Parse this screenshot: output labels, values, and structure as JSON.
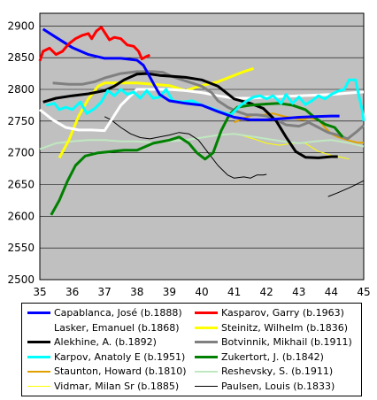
{
  "chart_data": {
    "type": "line",
    "xlim": [
      35,
      45
    ],
    "ylim": [
      2500,
      2920
    ],
    "x_ticks": [
      35,
      36,
      37,
      38,
      39,
      40,
      41,
      42,
      43,
      44,
      45
    ],
    "y_ticks": [
      2500,
      2550,
      2600,
      2650,
      2700,
      2750,
      2800,
      2850,
      2900
    ],
    "grid": true,
    "plot_background": "#c0c0c0",
    "legend_position": "bottom",
    "series": [
      {
        "name": "Capablanca, José (b.1888)",
        "color": "#0000ff",
        "width": 3,
        "points": [
          [
            35.1,
            2895
          ],
          [
            35.5,
            2882
          ],
          [
            36,
            2866
          ],
          [
            36.5,
            2855
          ],
          [
            37,
            2849
          ],
          [
            37.5,
            2849
          ],
          [
            38,
            2846
          ],
          [
            38.2,
            2838
          ],
          [
            38.5,
            2810
          ],
          [
            38.7,
            2792
          ],
          [
            39,
            2782
          ],
          [
            39.5,
            2778
          ],
          [
            40,
            2775
          ],
          [
            40.5,
            2765
          ],
          [
            41,
            2756
          ],
          [
            41.5,
            2752
          ],
          [
            42,
            2752
          ],
          [
            42.5,
            2754
          ],
          [
            43,
            2756
          ],
          [
            43.5,
            2757
          ],
          [
            44,
            2758
          ],
          [
            44.25,
            2758
          ]
        ]
      },
      {
        "name": "Kasparov, Garry (b.1963)",
        "color": "#ff0000",
        "width": 3,
        "points": [
          [
            35,
            2845
          ],
          [
            35.1,
            2860
          ],
          [
            35.3,
            2865
          ],
          [
            35.5,
            2855
          ],
          [
            35.7,
            2860
          ],
          [
            35.9,
            2872
          ],
          [
            36.1,
            2880
          ],
          [
            36.3,
            2885
          ],
          [
            36.5,
            2888
          ],
          [
            36.6,
            2880
          ],
          [
            36.75,
            2892
          ],
          [
            36.9,
            2898
          ],
          [
            37,
            2890
          ],
          [
            37.15,
            2878
          ],
          [
            37.3,
            2882
          ],
          [
            37.5,
            2880
          ],
          [
            37.7,
            2870
          ],
          [
            37.9,
            2868
          ],
          [
            38.05,
            2860
          ],
          [
            38.15,
            2848
          ],
          [
            38.3,
            2852
          ],
          [
            38.4,
            2854
          ]
        ]
      },
      {
        "name": "Lasker, Emanuel (b.1868)",
        "color": "#ffffff",
        "width": 3,
        "points": [
          [
            35,
            2768
          ],
          [
            35.4,
            2752
          ],
          [
            35.8,
            2740
          ],
          [
            36.2,
            2736
          ],
          [
            36.6,
            2736
          ],
          [
            37,
            2735
          ],
          [
            37.5,
            2775
          ],
          [
            38,
            2800
          ],
          [
            38.5,
            2800
          ],
          [
            39,
            2800
          ],
          [
            39.5,
            2798
          ],
          [
            40,
            2795
          ],
          [
            40.5,
            2790
          ],
          [
            41,
            2786
          ],
          [
            41.5,
            2786
          ],
          [
            42,
            2788
          ],
          [
            42.5,
            2789
          ],
          [
            43,
            2790
          ],
          [
            43.5,
            2791
          ],
          [
            44,
            2792
          ],
          [
            44.5,
            2794
          ],
          [
            45,
            2796
          ]
        ]
      },
      {
        "name": "Steinitz, Wilhelm (b.1836)",
        "color": "#ffff00",
        "width": 3,
        "points": [
          [
            35.6,
            2692
          ],
          [
            35.9,
            2720
          ],
          [
            36.2,
            2758
          ],
          [
            36.5,
            2785
          ],
          [
            36.8,
            2805
          ],
          [
            37,
            2810
          ],
          [
            37.5,
            2810
          ],
          [
            38,
            2810
          ],
          [
            38.5,
            2808
          ],
          [
            39,
            2806
          ],
          [
            39.5,
            2798
          ],
          [
            40,
            2806
          ],
          [
            40.5,
            2812
          ],
          [
            41,
            2822
          ],
          [
            41.3,
            2828
          ],
          [
            41.6,
            2833
          ]
        ]
      },
      {
        "name": "Alekhine, A. (b.1892)",
        "color": "#000000",
        "width": 3,
        "points": [
          [
            35.1,
            2780
          ],
          [
            35.5,
            2786
          ],
          [
            36,
            2790
          ],
          [
            36.5,
            2793
          ],
          [
            37,
            2798
          ],
          [
            37.3,
            2805
          ],
          [
            37.6,
            2815
          ],
          [
            38,
            2824
          ],
          [
            38.3,
            2825
          ],
          [
            38.7,
            2822
          ],
          [
            39,
            2821
          ],
          [
            39.5,
            2819
          ],
          [
            40,
            2815
          ],
          [
            40.5,
            2805
          ],
          [
            41,
            2785
          ],
          [
            41.5,
            2778
          ],
          [
            41.9,
            2770
          ],
          [
            42.3,
            2750
          ],
          [
            42.6,
            2725
          ],
          [
            42.9,
            2702
          ],
          [
            43.2,
            2693
          ],
          [
            43.6,
            2692
          ],
          [
            44,
            2694
          ],
          [
            44.2,
            2694
          ]
        ]
      },
      {
        "name": "Botvinnik, Mikhail (b.1911)",
        "color": "#808080",
        "width": 3,
        "points": [
          [
            35.4,
            2810
          ],
          [
            35.9,
            2808
          ],
          [
            36.3,
            2808
          ],
          [
            36.7,
            2812
          ],
          [
            37,
            2818
          ],
          [
            37.5,
            2825
          ],
          [
            38,
            2828
          ],
          [
            38.5,
            2828
          ],
          [
            38.8,
            2827
          ],
          [
            39.1,
            2820
          ],
          [
            39.4,
            2815
          ],
          [
            39.7,
            2810
          ],
          [
            40,
            2805
          ],
          [
            40.3,
            2795
          ],
          [
            40.5,
            2782
          ],
          [
            40.8,
            2772
          ],
          [
            41.1,
            2765
          ],
          [
            41.4,
            2760
          ],
          [
            41.7,
            2760
          ],
          [
            42,
            2758
          ],
          [
            42.3,
            2752
          ],
          [
            42.6,
            2744
          ],
          [
            43,
            2742
          ],
          [
            43.3,
            2748
          ],
          [
            43.6,
            2740
          ],
          [
            43.9,
            2732
          ],
          [
            44.2,
            2728
          ],
          [
            44.5,
            2722
          ],
          [
            44.8,
            2734
          ],
          [
            45,
            2743
          ]
        ]
      },
      {
        "name": "Karpov, Anatoly E (b.1951)",
        "color": "#00ffff",
        "width": 3,
        "points": [
          [
            35.2,
            2775
          ],
          [
            35.45,
            2778
          ],
          [
            35.6,
            2768
          ],
          [
            35.8,
            2772
          ],
          [
            36,
            2768
          ],
          [
            36.25,
            2780
          ],
          [
            36.45,
            2762
          ],
          [
            36.7,
            2770
          ],
          [
            36.9,
            2780
          ],
          [
            37.1,
            2798
          ],
          [
            37.3,
            2790
          ],
          [
            37.5,
            2800
          ],
          [
            37.7,
            2792
          ],
          [
            37.9,
            2796
          ],
          [
            38.1,
            2786
          ],
          [
            38.3,
            2798
          ],
          [
            38.5,
            2786
          ],
          [
            38.7,
            2788
          ],
          [
            38.9,
            2800
          ],
          [
            39.1,
            2782
          ],
          [
            39.4,
            2780
          ],
          [
            39.7,
            2782
          ],
          [
            40,
            2775
          ],
          [
            40.3,
            2770
          ],
          [
            40.6,
            2764
          ],
          [
            40.9,
            2760
          ],
          [
            41.2,
            2775
          ],
          [
            41.4,
            2782
          ],
          [
            41.6,
            2788
          ],
          [
            41.8,
            2790
          ],
          [
            42,
            2785
          ],
          [
            42.2,
            2790
          ],
          [
            42.45,
            2778
          ],
          [
            42.6,
            2792
          ],
          [
            42.8,
            2778
          ],
          [
            43,
            2788
          ],
          [
            43.2,
            2776
          ],
          [
            43.4,
            2782
          ],
          [
            43.6,
            2790
          ],
          [
            43.8,
            2785
          ],
          [
            44,
            2792
          ],
          [
            44.2,
            2797
          ],
          [
            44.4,
            2800
          ],
          [
            44.55,
            2815
          ],
          [
            44.75,
            2815
          ],
          [
            44.85,
            2790
          ],
          [
            44.95,
            2768
          ],
          [
            45,
            2750
          ]
        ]
      },
      {
        "name": "Zukertort, J. (b.1842)",
        "color": "#008000",
        "width": 3,
        "points": [
          [
            35.35,
            2602
          ],
          [
            35.6,
            2625
          ],
          [
            35.85,
            2655
          ],
          [
            36.1,
            2680
          ],
          [
            36.4,
            2695
          ],
          [
            36.8,
            2700
          ],
          [
            37.2,
            2702
          ],
          [
            37.6,
            2704
          ],
          [
            38,
            2704
          ],
          [
            38.5,
            2715
          ],
          [
            39,
            2720
          ],
          [
            39.3,
            2725
          ],
          [
            39.6,
            2715
          ],
          [
            39.85,
            2700
          ],
          [
            40.1,
            2690
          ],
          [
            40.35,
            2700
          ],
          [
            40.6,
            2735
          ],
          [
            40.85,
            2760
          ],
          [
            41.1,
            2772
          ],
          [
            41.5,
            2775
          ],
          [
            42,
            2777
          ],
          [
            42.4,
            2778
          ],
          [
            42.8,
            2775
          ],
          [
            43.2,
            2768
          ],
          [
            43.5,
            2755
          ],
          [
            43.8,
            2745
          ],
          [
            44.1,
            2740
          ],
          [
            44.35,
            2725
          ]
        ]
      },
      {
        "name": "Staunton, Howard (b.1810)",
        "color": "#e0a000",
        "width": 2,
        "points": [
          [
            41,
            2748
          ],
          [
            41.3,
            2755
          ],
          [
            41.6,
            2760
          ],
          [
            41.9,
            2760
          ],
          [
            42.2,
            2762
          ],
          [
            42.5,
            2758
          ],
          [
            42.8,
            2755
          ],
          [
            43.1,
            2752
          ],
          [
            43.3,
            2755
          ],
          [
            43.6,
            2752
          ],
          [
            43.8,
            2740
          ],
          [
            44,
            2730
          ],
          [
            44.2,
            2725
          ],
          [
            44.5,
            2720
          ],
          [
            44.8,
            2716
          ],
          [
            45,
            2716
          ]
        ]
      },
      {
        "name": "Reshevsky, S. (b.1911)",
        "color": "#c0e8c0",
        "width": 2,
        "points": [
          [
            35,
            2706
          ],
          [
            35.5,
            2715
          ],
          [
            36,
            2718
          ],
          [
            36.5,
            2720
          ],
          [
            37,
            2720
          ],
          [
            37.5,
            2718
          ],
          [
            38,
            2718
          ],
          [
            38.5,
            2716
          ],
          [
            39,
            2718
          ],
          [
            39.5,
            2720
          ],
          [
            40,
            2724
          ],
          [
            40.5,
            2728
          ],
          [
            41,
            2730
          ],
          [
            41.5,
            2726
          ],
          [
            42,
            2722
          ],
          [
            42.5,
            2718
          ],
          [
            43,
            2715
          ],
          [
            43.5,
            2718
          ],
          [
            44,
            2720
          ],
          [
            44.5,
            2716
          ],
          [
            45,
            2710
          ]
        ]
      },
      {
        "name": "Vidmar, Milan Sr (b.1885)",
        "color": "#ffff00",
        "width": 1,
        "points": [
          [
            41.2,
            2728
          ],
          [
            41.6,
            2722
          ],
          [
            42,
            2715
          ],
          [
            42.4,
            2712
          ],
          [
            42.8,
            2715
          ],
          [
            43.2,
            2715
          ],
          [
            43.6,
            2702
          ],
          [
            44,
            2696
          ],
          [
            44.4,
            2692
          ],
          [
            44.55,
            2690
          ]
        ]
      },
      {
        "name": "Paulsen, Louis (b.1833)",
        "color": "#000000",
        "width": 1,
        "points": [
          [
            37,
            2757
          ],
          [
            37.2,
            2752
          ],
          [
            37.5,
            2740
          ],
          [
            37.8,
            2730
          ],
          [
            38.1,
            2724
          ],
          [
            38.4,
            2722
          ],
          [
            38.7,
            2725
          ],
          [
            39,
            2728
          ],
          [
            39.3,
            2732
          ],
          [
            39.6,
            2730
          ],
          [
            39.9,
            2720
          ],
          [
            40.2,
            2700
          ],
          [
            40.5,
            2680
          ],
          [
            40.8,
            2665
          ],
          [
            41,
            2660
          ],
          [
            41.3,
            2662
          ],
          [
            41.5,
            2660
          ],
          [
            41.7,
            2665
          ],
          [
            41.9,
            2665
          ],
          [
            42,
            2666
          ]
        ],
        "extra_segment": [
          [
            43.9,
            2631
          ],
          [
            44.2,
            2637
          ],
          [
            44.6,
            2646
          ],
          [
            45,
            2656
          ]
        ]
      }
    ]
  }
}
